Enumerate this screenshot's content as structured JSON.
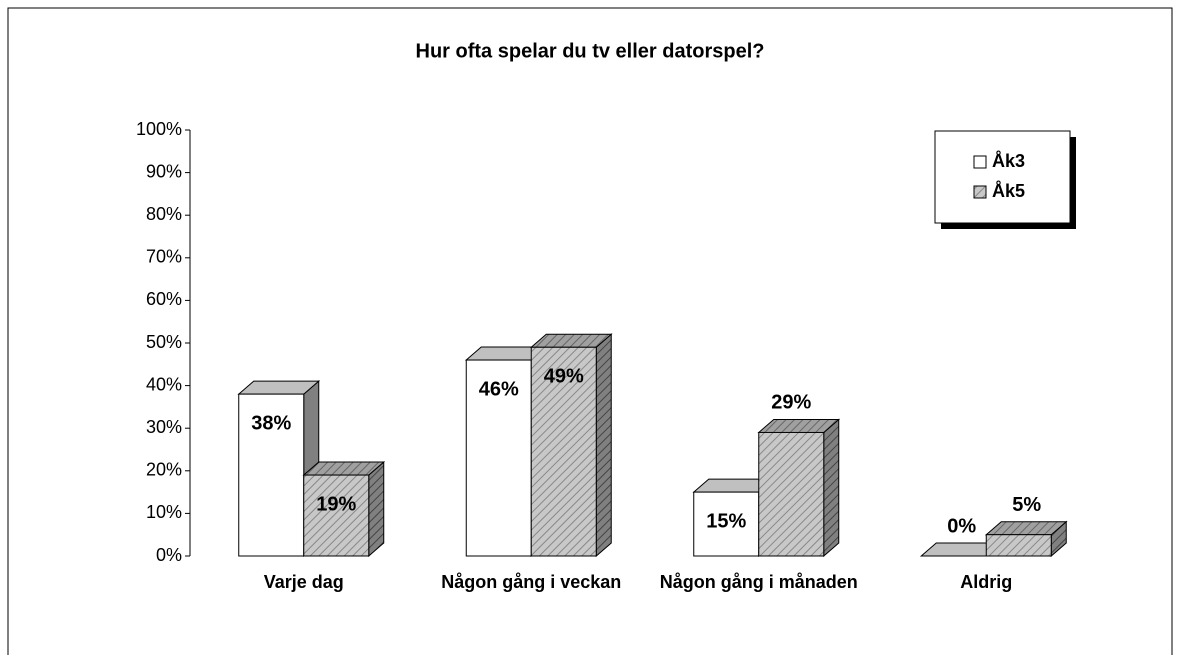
{
  "chart_data": {
    "type": "bar3d",
    "title": "Hur ofta spelar du tv eller datorspel?",
    "categories": [
      "Varje dag",
      "Någon gång i veckan",
      "Någon gång i månaden",
      "Aldrig"
    ],
    "series": [
      {
        "name": "Åk3",
        "color": "#ffffff",
        "pattern": "solid",
        "values": [
          38,
          46,
          15,
          0
        ],
        "value_labels": [
          "38%",
          "46%",
          "15%",
          "0%"
        ]
      },
      {
        "name": "Åk5",
        "color": "#c0c0c0",
        "pattern": "diagonal",
        "values": [
          19,
          49,
          29,
          5
        ],
        "value_labels": [
          "19%",
          "49%",
          "29%",
          "5%"
        ]
      }
    ],
    "ylim": [
      0,
      100
    ],
    "yticks": [
      {
        "value": 0,
        "label": "0%"
      },
      {
        "value": 10,
        "label": "10%"
      },
      {
        "value": 20,
        "label": "20%"
      },
      {
        "value": 30,
        "label": "30%"
      },
      {
        "value": 40,
        "label": "40%"
      },
      {
        "value": 50,
        "label": "50%"
      },
      {
        "value": 60,
        "label": "60%"
      },
      {
        "value": 70,
        "label": "70%"
      },
      {
        "value": 80,
        "label": "80%"
      },
      {
        "value": 90,
        "label": "90%"
      },
      {
        "value": 100,
        "label": "100%"
      }
    ],
    "grid": false,
    "legend": "top-right"
  }
}
